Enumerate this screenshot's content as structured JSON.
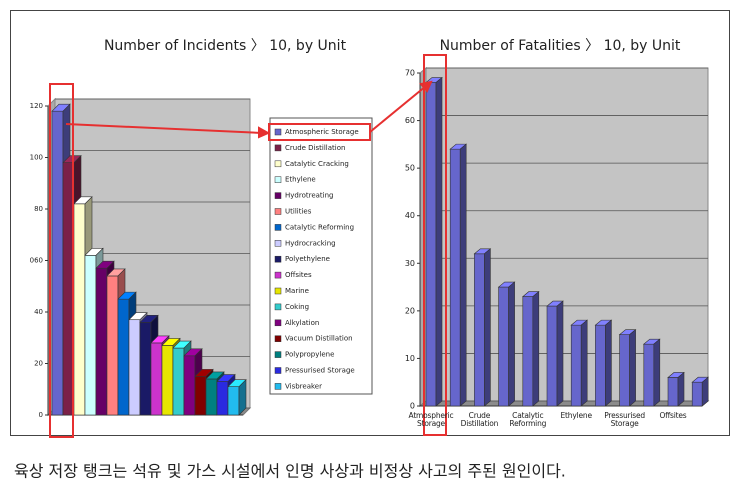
{
  "chart_data": [
    {
      "type": "bar",
      "title": "Number of Incidents 〉 10, by Unit",
      "categories": [
        "Atmospheric Storage",
        "Crude Distillation",
        "Catalytic Cracking",
        "Ethylene",
        "Hydrotreating",
        "Utilities",
        "Catalytic Reforming",
        "Hydrocracking",
        "Polyethylene",
        "Offsites",
        "Marine",
        "Coking",
        "Alkylation",
        "Vacuum Distillation",
        "Polypropylene",
        "Pressurised Storage",
        "Visbreaker"
      ],
      "values": [
        118,
        98,
        82,
        62,
        57,
        54,
        45,
        37,
        36,
        28,
        27,
        26,
        23,
        15,
        14,
        13,
        11
      ],
      "colors": [
        "#6666cc",
        "#7b2048",
        "#ffffcc",
        "#ccffff",
        "#660066",
        "#ff8080",
        "#0066cc",
        "#ccccff",
        "#1a1a66",
        "#cc33cc",
        "#e6e600",
        "#33cccc",
        "#800080",
        "#800000",
        "#008080",
        "#2a2ae0",
        "#22bbee"
      ],
      "ylim": [
        0,
        120
      ],
      "yticks": [
        0,
        20,
        40,
        {
          "value": 60,
          "label": "060"
        },
        80,
        100,
        120
      ],
      "grid": true,
      "legend": true
    },
    {
      "type": "bar",
      "title": "Number of Fatalities 〉 10, by Unit",
      "categories": [
        "Atmospheric Storage",
        null,
        "Crude Distillation",
        null,
        "Catalytic Reforming",
        null,
        "Ethylene",
        null,
        "Pressurised Storage",
        null,
        "Offsites",
        null
      ],
      "values": [
        68,
        54,
        32,
        25,
        23,
        21,
        17,
        17,
        15,
        13,
        6,
        5
      ],
      "color": "#6666cc",
      "ylim": [
        0,
        70
      ],
      "yticks": [
        0,
        10,
        20,
        30,
        40,
        50,
        60,
        70
      ],
      "grid": true,
      "legend": false
    }
  ],
  "caption": "육상 저장 탱크는 석유 및 가스 시설에서 인명 사상과 비정상 사고의 주된 원인이다."
}
